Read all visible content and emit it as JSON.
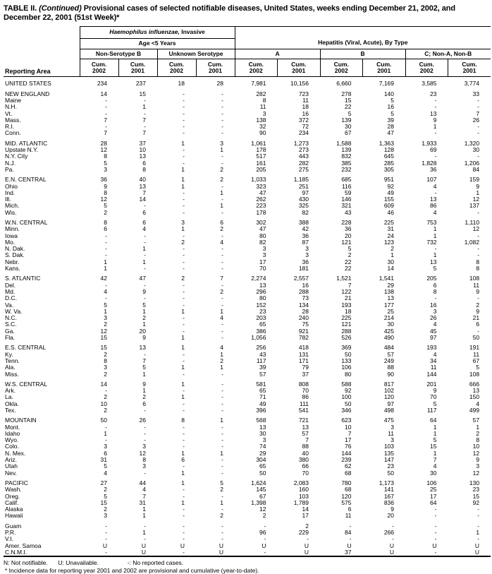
{
  "title": {
    "prefix": "TABLE II.",
    "continued": " (Continued)",
    "rest": " Provisional cases of selected notifiable diseases, United States, weeks ending December 21, 2002, and December 22, 2001 (51st Week)*"
  },
  "header": {
    "reporting_area_label": "Reporting Area",
    "hib_group": {
      "name_italic": "Haemophilus influenzae,",
      "name_rest": " Invasive",
      "age_label": "Age <5 Years",
      "subgroups": [
        "Non-Serotype B",
        "Unknown Serotype"
      ]
    },
    "hep_group": {
      "name": "Hepatitis (Viral, Acute), By Type",
      "subgroups": [
        "A",
        "B",
        "C; Non-A, Non-B"
      ]
    },
    "cum_label": "Cum.",
    "years": [
      "2002",
      "2001",
      "2002",
      "2001",
      "2002",
      "2001",
      "2002",
      "2001",
      "2002",
      "2001"
    ]
  },
  "sections": [
    {
      "rows": [
        {
          "area": "UNITED STATES",
          "values": [
            "234",
            "237",
            "18",
            "28",
            "7,981",
            "10,156",
            "6,660",
            "7,169",
            "3,585",
            "3,774"
          ]
        }
      ]
    },
    {
      "rows": [
        {
          "area": "NEW ENGLAND",
          "values": [
            "14",
            "15",
            "-",
            "-",
            "282",
            "723",
            "278",
            "140",
            "23",
            "33"
          ]
        },
        {
          "area": "Maine",
          "values": [
            "-",
            "-",
            "-",
            "-",
            "8",
            "11",
            "15",
            "5",
            "-",
            "-"
          ]
        },
        {
          "area": "N.H.",
          "values": [
            "-",
            "1",
            "-",
            "-",
            "11",
            "18",
            "22",
            "16",
            "-",
            "-"
          ]
        },
        {
          "area": "Vt.",
          "values": [
            "-",
            "-",
            "-",
            "-",
            "3",
            "16",
            "5",
            "5",
            "13",
            "7"
          ]
        },
        {
          "area": "Mass.",
          "values": [
            "7",
            "7",
            "-",
            "-",
            "138",
            "372",
            "139",
            "39",
            "9",
            "26"
          ]
        },
        {
          "area": "R.I.",
          "values": [
            "-",
            "-",
            "-",
            "-",
            "32",
            "72",
            "30",
            "28",
            "1",
            "-"
          ]
        },
        {
          "area": "Conn.",
          "values": [
            "7",
            "7",
            "-",
            "-",
            "90",
            "234",
            "67",
            "47",
            "-",
            "-"
          ]
        }
      ]
    },
    {
      "rows": [
        {
          "area": "MID. ATLANTIC",
          "values": [
            "28",
            "37",
            "1",
            "3",
            "1,061",
            "1,273",
            "1,588",
            "1,363",
            "1,933",
            "1,320"
          ]
        },
        {
          "area": "Upstate N.Y.",
          "values": [
            "12",
            "10",
            "-",
            "1",
            "178",
            "273",
            "139",
            "128",
            "69",
            "30"
          ]
        },
        {
          "area": "N.Y. City",
          "values": [
            "8",
            "13",
            "-",
            "-",
            "517",
            "443",
            "832",
            "645",
            "-",
            "-"
          ]
        },
        {
          "area": "N.J.",
          "values": [
            "5",
            "6",
            "-",
            "-",
            "161",
            "282",
            "385",
            "285",
            "1,828",
            "1,206"
          ]
        },
        {
          "area": "Pa.",
          "values": [
            "3",
            "8",
            "1",
            "2",
            "205",
            "275",
            "232",
            "305",
            "36",
            "84"
          ]
        }
      ]
    },
    {
      "rows": [
        {
          "area": "E.N. CENTRAL",
          "values": [
            "36",
            "40",
            "1",
            "2",
            "1,033",
            "1,185",
            "685",
            "951",
            "107",
            "159"
          ]
        },
        {
          "area": "Ohio",
          "values": [
            "9",
            "13",
            "1",
            "-",
            "323",
            "251",
            "116",
            "92",
            "4",
            "9"
          ]
        },
        {
          "area": "Ind.",
          "values": [
            "8",
            "7",
            "-",
            "1",
            "47",
            "97",
            "59",
            "49",
            "-",
            "1"
          ]
        },
        {
          "area": "Ill.",
          "values": [
            "12",
            "14",
            "-",
            "-",
            "262",
            "430",
            "146",
            "155",
            "13",
            "12"
          ]
        },
        {
          "area": "Mich.",
          "values": [
            "5",
            "-",
            "-",
            "1",
            "223",
            "325",
            "321",
            "609",
            "86",
            "137"
          ]
        },
        {
          "area": "Wis.",
          "values": [
            "2",
            "6",
            "-",
            "-",
            "178",
            "82",
            "43",
            "46",
            "4",
            "-"
          ]
        }
      ]
    },
    {
      "rows": [
        {
          "area": "W.N. CENTRAL",
          "values": [
            "8",
            "6",
            "3",
            "6",
            "302",
            "388",
            "228",
            "225",
            "753",
            "1,110"
          ]
        },
        {
          "area": "Minn.",
          "values": [
            "6",
            "4",
            "1",
            "2",
            "47",
            "42",
            "36",
            "31",
            "1",
            "12"
          ]
        },
        {
          "area": "Iowa",
          "values": [
            "-",
            "-",
            "-",
            "-",
            "80",
            "36",
            "20",
            "24",
            "1",
            "-"
          ]
        },
        {
          "area": "Mo.",
          "values": [
            "-",
            "-",
            "2",
            "4",
            "82",
            "87",
            "121",
            "123",
            "732",
            "1,082"
          ]
        },
        {
          "area": "N. Dak.",
          "values": [
            "-",
            "1",
            "-",
            "-",
            "3",
            "3",
            "5",
            "2",
            "-",
            "-"
          ]
        },
        {
          "area": "S. Dak.",
          "values": [
            "-",
            "-",
            "-",
            "-",
            "3",
            "3",
            "2",
            "1",
            "1",
            "-"
          ]
        },
        {
          "area": "Nebr.",
          "values": [
            "1",
            "1",
            "-",
            "-",
            "17",
            "36",
            "22",
            "30",
            "13",
            "8"
          ]
        },
        {
          "area": "Kans.",
          "values": [
            "1",
            "-",
            "-",
            "-",
            "70",
            "181",
            "22",
            "14",
            "5",
            "8"
          ]
        }
      ]
    },
    {
      "rows": [
        {
          "area": "S. ATLANTIC",
          "values": [
            "42",
            "47",
            "2",
            "7",
            "2,274",
            "2,557",
            "1,521",
            "1,541",
            "205",
            "108"
          ]
        },
        {
          "area": "Del.",
          "values": [
            "-",
            "-",
            "-",
            "-",
            "13",
            "16",
            "7",
            "29",
            "6",
            "11"
          ]
        },
        {
          "area": "Md.",
          "values": [
            "4",
            "9",
            "-",
            "2",
            "296",
            "288",
            "122",
            "138",
            "8",
            "9"
          ]
        },
        {
          "area": "D.C.",
          "values": [
            "-",
            "-",
            "-",
            "-",
            "80",
            "73",
            "21",
            "13",
            "-",
            "-"
          ]
        },
        {
          "area": "Va.",
          "values": [
            "5",
            "5",
            "-",
            "-",
            "152",
            "134",
            "193",
            "177",
            "16",
            "2"
          ]
        },
        {
          "area": "W. Va.",
          "values": [
            "1",
            "1",
            "1",
            "1",
            "23",
            "28",
            "18",
            "25",
            "3",
            "9"
          ]
        },
        {
          "area": "N.C.",
          "values": [
            "3",
            "2",
            "-",
            "4",
            "203",
            "240",
            "225",
            "214",
            "26",
            "21"
          ]
        },
        {
          "area": "S.C.",
          "values": [
            "2",
            "1",
            "-",
            "-",
            "65",
            "75",
            "121",
            "30",
            "4",
            "6"
          ]
        },
        {
          "area": "Ga.",
          "values": [
            "12",
            "20",
            "-",
            "-",
            "386",
            "921",
            "288",
            "425",
            "45",
            "-"
          ]
        },
        {
          "area": "Fla.",
          "values": [
            "15",
            "9",
            "1",
            "-",
            "1,056",
            "782",
            "526",
            "490",
            "97",
            "50"
          ]
        }
      ]
    },
    {
      "rows": [
        {
          "area": "E.S. CENTRAL",
          "values": [
            "15",
            "13",
            "1",
            "4",
            "256",
            "418",
            "369",
            "484",
            "193",
            "191"
          ]
        },
        {
          "area": "Ky.",
          "values": [
            "2",
            "-",
            "-",
            "1",
            "43",
            "131",
            "50",
            "57",
            "4",
            "11"
          ]
        },
        {
          "area": "Tenn.",
          "values": [
            "8",
            "7",
            "-",
            "2",
            "117",
            "171",
            "133",
            "249",
            "34",
            "67"
          ]
        },
        {
          "area": "Ala.",
          "values": [
            "3",
            "5",
            "1",
            "1",
            "39",
            "79",
            "106",
            "88",
            "11",
            "5"
          ]
        },
        {
          "area": "Miss.",
          "values": [
            "2",
            "1",
            "-",
            "-",
            "57",
            "37",
            "80",
            "90",
            "144",
            "108"
          ]
        }
      ]
    },
    {
      "rows": [
        {
          "area": "W.S. CENTRAL",
          "values": [
            "14",
            "9",
            "1",
            "-",
            "581",
            "808",
            "588",
            "817",
            "201",
            "666"
          ]
        },
        {
          "area": "Ark.",
          "values": [
            "-",
            "1",
            "-",
            "-",
            "65",
            "70",
            "92",
            "102",
            "9",
            "13"
          ]
        },
        {
          "area": "La.",
          "values": [
            "2",
            "2",
            "1",
            "-",
            "71",
            "86",
            "100",
            "120",
            "70",
            "150"
          ]
        },
        {
          "area": "Okla.",
          "values": [
            "10",
            "6",
            "-",
            "-",
            "49",
            "111",
            "50",
            "97",
            "5",
            "4"
          ]
        },
        {
          "area": "Tex.",
          "values": [
            "2",
            "-",
            "-",
            "-",
            "396",
            "541",
            "346",
            "498",
            "117",
            "499"
          ]
        }
      ]
    },
    {
      "rows": [
        {
          "area": "MOUNTAIN",
          "values": [
            "50",
            "26",
            "8",
            "1",
            "568",
            "721",
            "623",
            "475",
            "64",
            "57"
          ]
        },
        {
          "area": "Mont.",
          "values": [
            "-",
            "-",
            "-",
            "-",
            "13",
            "13",
            "10",
            "3",
            "1",
            "1"
          ]
        },
        {
          "area": "Idaho",
          "values": [
            "1",
            "-",
            "-",
            "-",
            "30",
            "57",
            "7",
            "11",
            "1",
            "2"
          ]
        },
        {
          "area": "Wyo.",
          "values": [
            "-",
            "-",
            "-",
            "-",
            "3",
            "7",
            "17",
            "3",
            "5",
            "8"
          ]
        },
        {
          "area": "Colo.",
          "values": [
            "3",
            "3",
            "-",
            "-",
            "74",
            "88",
            "76",
            "103",
            "15",
            "10"
          ]
        },
        {
          "area": "N. Mex.",
          "values": [
            "6",
            "12",
            "1",
            "1",
            "29",
            "40",
            "144",
            "135",
            "1",
            "12"
          ]
        },
        {
          "area": "Ariz.",
          "values": [
            "31",
            "8",
            "6",
            "-",
            "304",
            "380",
            "239",
            "147",
            "7",
            "9"
          ]
        },
        {
          "area": "Utah",
          "values": [
            "5",
            "3",
            "-",
            "-",
            "65",
            "66",
            "62",
            "23",
            "4",
            "3"
          ]
        },
        {
          "area": "Nev.",
          "values": [
            "4",
            "-",
            "1",
            "-",
            "50",
            "70",
            "68",
            "50",
            "30",
            "12"
          ]
        }
      ]
    },
    {
      "rows": [
        {
          "area": "PACIFIC",
          "values": [
            "27",
            "44",
            "1",
            "5",
            "1,624",
            "2,083",
            "780",
            "1,173",
            "106",
            "130"
          ]
        },
        {
          "area": "Wash.",
          "values": [
            "2",
            "4",
            "-",
            "2",
            "145",
            "160",
            "68",
            "141",
            "25",
            "23"
          ]
        },
        {
          "area": "Oreg.",
          "values": [
            "5",
            "7",
            "-",
            "-",
            "67",
            "103",
            "120",
            "167",
            "17",
            "15"
          ]
        },
        {
          "area": "Calif.",
          "values": [
            "15",
            "31",
            "1",
            "1",
            "1,398",
            "1,789",
            "575",
            "836",
            "64",
            "92"
          ]
        },
        {
          "area": "Alaska",
          "values": [
            "2",
            "1",
            "-",
            "-",
            "12",
            "14",
            "6",
            "9",
            "-",
            "-"
          ]
        },
        {
          "area": "Hawaii",
          "values": [
            "3",
            "1",
            "-",
            "2",
            "2",
            "17",
            "11",
            "20",
            "-",
            "-"
          ]
        }
      ]
    },
    {
      "rows": [
        {
          "area": "Guam",
          "values": [
            "-",
            "-",
            "-",
            "-",
            "-",
            "2",
            "-",
            "-",
            "-",
            "-"
          ]
        },
        {
          "area": "P.R.",
          "values": [
            "-",
            "1",
            "-",
            "-",
            "96",
            "229",
            "84",
            "266",
            "-",
            "1"
          ]
        },
        {
          "area": "V.I.",
          "values": [
            "-",
            "-",
            "-",
            "-",
            "-",
            "-",
            "-",
            "-",
            "-",
            "-"
          ]
        },
        {
          "area": "Amer. Samoa",
          "values": [
            "U",
            "U",
            "U",
            "U",
            "U",
            "U",
            "U",
            "U",
            "U",
            "U"
          ]
        },
        {
          "area": "C.N.M.I.",
          "values": [
            "-",
            "U",
            "-",
            "U",
            "-",
            "U",
            "37",
            "U",
            "-",
            "U"
          ]
        }
      ]
    }
  ],
  "footnotes": {
    "legend": [
      "N: Not notifiable.",
      "U: Unavailable.",
      "-: No reported cases."
    ],
    "note": "* Incidence data for reporting year 2001 and 2002 are provisional and cumulative (year-to-date)."
  }
}
